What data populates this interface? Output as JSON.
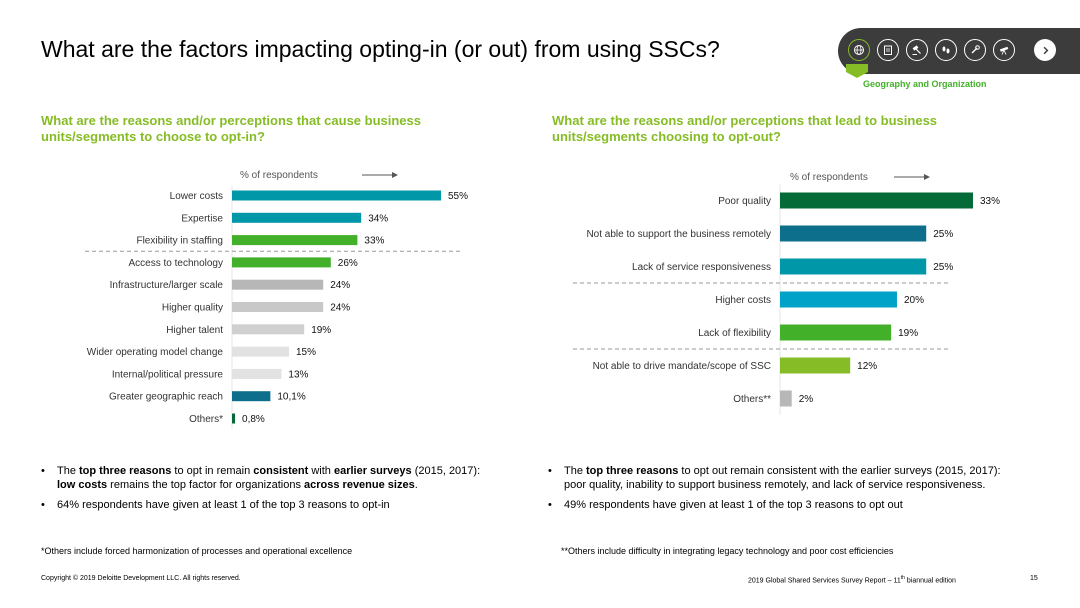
{
  "page_title": "What are the factors impacting opting-in (or out) from using SSCs?",
  "nav": {
    "section_label": "Geography and Organization",
    "icons": [
      "globe-icon",
      "clipboard-icon",
      "gavel-icon",
      "footprints-icon",
      "wrench-icon",
      "telescope-icon"
    ],
    "next_icon": "chevron-right-icon"
  },
  "left": {
    "subtitle": "What are the reasons and/or perceptions that cause business units/segments to choose to opt-in?",
    "bullets": [
      [
        "The ",
        "top three reasons",
        " to opt in remain ",
        "consistent",
        " with ",
        "earlier surveys",
        " (2015, 2017): ",
        "low costs",
        " remains the top factor for organizations ",
        "across revenue sizes",
        "."
      ],
      [
        "64% respondents have given at least 1 of the top 3 reasons to opt-in"
      ]
    ],
    "footnote": "*Others include forced harmonization of processes and operational excellence"
  },
  "right": {
    "subtitle": "What are the reasons and/or perceptions that lead to business units/segments choosing to opt-out?",
    "bullets": [
      [
        "The ",
        "top three reasons",
        " to opt out remain consistent with the earlier surveys (2015, 2017): poor quality, inability to support business remotely, and lack of service responsiveness."
      ],
      [
        "49% respondents have given at least 1 of the top 3 reasons to opt out"
      ]
    ],
    "footnote": "**Others include difficulty in integrating legacy technology and poor cost efficiencies"
  },
  "footer": {
    "copyright": "Copyright © 2019 Deloitte Development LLC. All rights reserved.",
    "report_prefix": "2019 Global Shared Services Survey Report – 11",
    "report_sup": "th",
    "report_suffix": " biannual edition",
    "page_number": "15"
  },
  "colors": {
    "green_accent": "#86bc25",
    "dark_green": "#046a38",
    "teal_dark": "#0d6f8b",
    "teal": "#0097a9",
    "teal_light": "#00a3c7",
    "green": "#43b02a",
    "lime": "#86bc25",
    "gray_dark": "#b7b7b7",
    "gray": "#c8c8c8",
    "gray_light": "#d0d0d0",
    "gray_lighter": "#e2e2e2"
  },
  "chart_data": [
    {
      "type": "bar",
      "orientation": "horizontal",
      "axis_title": "% of respondents",
      "xlim": [
        0,
        55
      ],
      "categories": [
        "Lower costs",
        "Expertise",
        "Flexibility in staffing",
        "Access to technology",
        "Infrastructure/larger scale",
        "Higher quality",
        "Higher talent",
        "Wider operating model change",
        "Internal/political pressure",
        "Greater geographic reach",
        "Others*"
      ],
      "values": [
        55,
        34,
        33,
        26,
        24,
        24,
        19,
        15,
        13,
        10.1,
        0.8
      ],
      "labels": [
        "55%",
        "34%",
        "33%",
        "26%",
        "24%",
        "24%",
        "19%",
        "15%",
        "13%",
        "10,1%",
        "0,8%"
      ],
      "colors": [
        "#0097a9",
        "#0097a9",
        "#43b02a",
        "#43b02a",
        "#b7b7b7",
        "#c8c8c8",
        "#d0d0d0",
        "#e2e2e2",
        "#e2e2e2",
        "#0d6f8b",
        "#046a38"
      ],
      "divider_after_index": 2
    },
    {
      "type": "bar",
      "orientation": "horizontal",
      "axis_title": "% of respondents",
      "xlim": [
        0,
        33
      ],
      "categories": [
        "Poor quality",
        "Not able to support the business remotely",
        "Lack of service responsiveness",
        "Higher costs",
        "Lack of flexibility",
        "Not able to drive mandate/scope of SSC",
        "Others**"
      ],
      "values": [
        33,
        25,
        25,
        20,
        19,
        12,
        2
      ],
      "labels": [
        "33%",
        "25%",
        "25%",
        "20%",
        "19%",
        "12%",
        "2%"
      ],
      "colors": [
        "#046a38",
        "#0d6f8b",
        "#0097a9",
        "#00a3c7",
        "#43b02a",
        "#86bc25",
        "#b7b7b7"
      ],
      "divider_after_index": 2,
      "divider2_after_index": 4
    }
  ]
}
